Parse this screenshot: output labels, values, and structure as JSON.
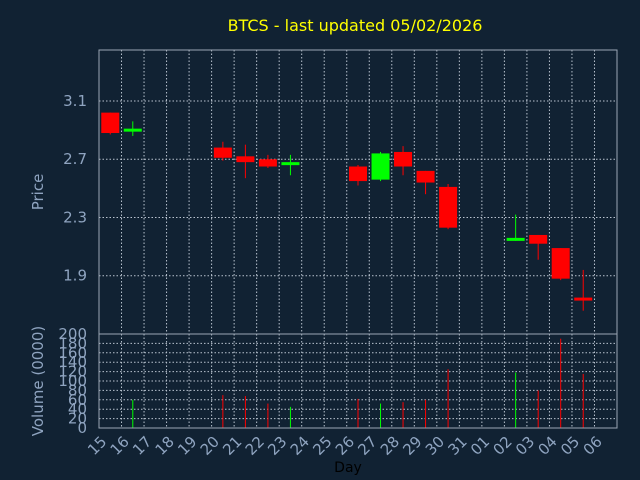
{
  "chart_data": [
    {
      "type": "candlestick",
      "title": "BTCS - last updated 05/02/2026",
      "xlabel": "",
      "ylabel": "Price",
      "ylim": [
        1.5,
        3.45
      ],
      "yticks": [
        "3.1",
        "2.7",
        "2.3",
        "1.9"
      ],
      "grid": true,
      "colors": {
        "up": "#00ff00",
        "down": "#ff0000"
      },
      "categories": [
        "15",
        "16",
        "17",
        "18",
        "19",
        "20",
        "21",
        "22",
        "23",
        "24",
        "25",
        "26",
        "27",
        "28",
        "29",
        "30",
        "31",
        "01",
        "02",
        "03",
        "04",
        "05",
        "06"
      ],
      "candles": [
        {
          "day": "15",
          "open": 3.02,
          "high": 3.02,
          "low": 2.87,
          "close": 2.88
        },
        {
          "day": "16",
          "open": 2.89,
          "high": 2.96,
          "low": 2.86,
          "close": 2.91
        },
        {
          "day": "20",
          "open": 2.78,
          "high": 2.82,
          "low": 2.69,
          "close": 2.71
        },
        {
          "day": "21",
          "open": 2.72,
          "high": 2.8,
          "low": 2.57,
          "close": 2.68
        },
        {
          "day": "22",
          "open": 2.7,
          "high": 2.73,
          "low": 2.64,
          "close": 2.65
        },
        {
          "day": "23",
          "open": 2.67,
          "high": 2.73,
          "low": 2.59,
          "close": 2.68
        },
        {
          "day": "26",
          "open": 2.65,
          "high": 2.66,
          "low": 2.52,
          "close": 2.55
        },
        {
          "day": "27",
          "open": 2.56,
          "high": 2.75,
          "low": 2.55,
          "close": 2.74
        },
        {
          "day": "28",
          "open": 2.75,
          "high": 2.79,
          "low": 2.59,
          "close": 2.65
        },
        {
          "day": "29",
          "open": 2.62,
          "high": 2.62,
          "low": 2.46,
          "close": 2.54
        },
        {
          "day": "30",
          "open": 2.51,
          "high": 2.53,
          "low": 2.22,
          "close": 2.23
        },
        {
          "day": "02",
          "open": 2.14,
          "high": 2.32,
          "low": 2.14,
          "close": 2.16
        },
        {
          "day": "03",
          "open": 2.18,
          "high": 2.18,
          "low": 2.01,
          "close": 2.12
        },
        {
          "day": "04",
          "open": 2.09,
          "high": 2.09,
          "low": 1.87,
          "close": 1.88
        },
        {
          "day": "05",
          "open": 1.75,
          "high": 1.94,
          "low": 1.66,
          "close": 1.73
        }
      ]
    },
    {
      "type": "bar",
      "title": "",
      "xlabel": "Day",
      "ylabel": "Volume (0000)",
      "ylim": [
        0,
        200
      ],
      "yticks": [
        "200",
        "180",
        "160",
        "140",
        "120",
        "100",
        "80",
        "60",
        "40",
        "20",
        "0"
      ],
      "grid": true,
      "categories": [
        "15",
        "16",
        "17",
        "18",
        "19",
        "20",
        "21",
        "22",
        "23",
        "24",
        "25",
        "26",
        "27",
        "28",
        "29",
        "30",
        "31",
        "01",
        "02",
        "03",
        "04",
        "05",
        "06"
      ],
      "bars": [
        {
          "day": "16",
          "value": 60,
          "direction": "up"
        },
        {
          "day": "20",
          "value": 70,
          "direction": "down"
        },
        {
          "day": "21",
          "value": 68,
          "direction": "down"
        },
        {
          "day": "22",
          "value": 52,
          "direction": "down"
        },
        {
          "day": "23",
          "value": 45,
          "direction": "up"
        },
        {
          "day": "26",
          "value": 62,
          "direction": "down"
        },
        {
          "day": "27",
          "value": 52,
          "direction": "up"
        },
        {
          "day": "28",
          "value": 55,
          "direction": "down"
        },
        {
          "day": "29",
          "value": 60,
          "direction": "down"
        },
        {
          "day": "30",
          "value": 125,
          "direction": "down"
        },
        {
          "day": "02",
          "value": 118,
          "direction": "up"
        },
        {
          "day": "03",
          "value": 80,
          "direction": "down"
        },
        {
          "day": "04",
          "value": 190,
          "direction": "down"
        },
        {
          "day": "05",
          "value": 115,
          "direction": "down"
        }
      ]
    }
  ]
}
